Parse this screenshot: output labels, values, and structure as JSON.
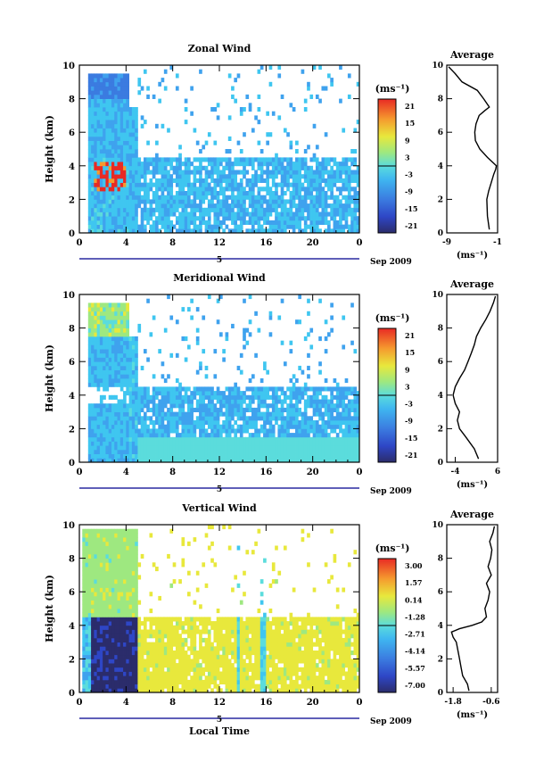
{
  "chart_data": [
    {
      "type": "heatmap",
      "title": "Zonal Wind",
      "xlabel": "",
      "ylabel": "Height (km)",
      "xlim": [
        0,
        24
      ],
      "ylim": [
        0,
        10
      ],
      "xticks": [
        "0",
        "4",
        "8",
        "12",
        "16",
        "20",
        "0"
      ],
      "yticks": [
        "0",
        "2",
        "4",
        "6",
        "8",
        "10"
      ],
      "date_label": "5",
      "month_label": "Sep 2009",
      "colorbar": {
        "unit": "(ms⁻¹)",
        "ticks": [
          "21",
          "15",
          "9",
          "3",
          "-3",
          "-9",
          "-15",
          "-21"
        ],
        "range": [
          -24,
          24
        ]
      },
      "average": {
        "title": "Average",
        "xlabel": "(ms⁻¹)",
        "xticks": [
          "-9",
          "-1"
        ],
        "xlim": [
          -9,
          -1
        ],
        "yticks": [
          "0",
          "2",
          "4",
          "6",
          "8",
          "10"
        ],
        "height": [
          0.2,
          1.0,
          2.0,
          2.5,
          3.0,
          3.5,
          3.8,
          4.0,
          4.5,
          5.0,
          5.5,
          6.0,
          6.5,
          7.0,
          7.3,
          7.5,
          8.0,
          8.5,
          9.0,
          9.5,
          9.9
        ],
        "value": [
          -2.3,
          -2.6,
          -2.7,
          -2.4,
          -2.0,
          -1.6,
          -1.3,
          -1.2,
          -2.6,
          -3.8,
          -4.5,
          -4.6,
          -4.4,
          -3.9,
          -3.0,
          -2.3,
          -3.2,
          -4.2,
          -6.6,
          -7.7,
          -8.7
        ]
      }
    },
    {
      "type": "heatmap",
      "title": "Meridional Wind",
      "xlabel": "",
      "ylabel": "Height (km)",
      "xlim": [
        0,
        24
      ],
      "ylim": [
        0,
        10
      ],
      "xticks": [
        "0",
        "4",
        "8",
        "12",
        "16",
        "20",
        "0"
      ],
      "yticks": [
        "0",
        "2",
        "4",
        "6",
        "8",
        "10"
      ],
      "date_label": "5",
      "month_label": "Sep 2009",
      "colorbar": {
        "unit": "(ms⁻¹)",
        "ticks": [
          "21",
          "15",
          "9",
          "3",
          "-3",
          "-9",
          "-15",
          "-21"
        ],
        "range": [
          -24,
          24
        ]
      },
      "average": {
        "title": "Average",
        "xlabel": "(ms⁻¹)",
        "xticks": [
          "-4",
          "6"
        ],
        "xlim": [
          -6,
          6
        ],
        "yticks": [
          "0",
          "2",
          "4",
          "6",
          "8",
          "10"
        ],
        "height": [
          0.2,
          0.8,
          1.5,
          2.0,
          2.5,
          3.0,
          3.5,
          4.0,
          4.5,
          5.0,
          5.5,
          6.0,
          6.5,
          7.0,
          7.5,
          8.0,
          8.5,
          9.0,
          9.5,
          9.9
        ],
        "value": [
          1.5,
          0.5,
          -1.5,
          -3.0,
          -3.5,
          -3.0,
          -4.0,
          -4.5,
          -4.0,
          -3.0,
          -1.8,
          -1.0,
          -0.2,
          0.5,
          1.0,
          2.0,
          3.2,
          4.2,
          5.0,
          5.5
        ]
      }
    },
    {
      "type": "heatmap",
      "title": "Vertical Wind",
      "xlabel": "Local Time",
      "ylabel": "Height (km)",
      "xlim": [
        0,
        24
      ],
      "ylim": [
        0,
        10
      ],
      "xticks": [
        "0",
        "4",
        "8",
        "12",
        "16",
        "20",
        "0"
      ],
      "yticks": [
        "0",
        "2",
        "4",
        "6",
        "8",
        "10"
      ],
      "date_label": "5",
      "month_label": "Sep 2009",
      "colorbar": {
        "unit": "(ms⁻¹)",
        "ticks": [
          "3.00",
          "1.57",
          "0.14",
          "-1.28",
          "-2.71",
          "-4.14",
          "-5.57",
          "-7.00"
        ],
        "range": [
          -7.7,
          3.7
        ]
      },
      "average": {
        "title": "Average",
        "xlabel": "(ms⁻¹)",
        "xticks": [
          "-1.8",
          "-0.6"
        ],
        "xlim": [
          -2.0,
          -0.4
        ],
        "yticks": [
          "0",
          "2",
          "4",
          "6",
          "8",
          "10"
        ],
        "height": [
          0.1,
          0.5,
          1.0,
          1.5,
          2.0,
          2.5,
          3.0,
          3.3,
          3.6,
          3.8,
          4.0,
          4.2,
          4.5,
          5.0,
          5.5,
          6.0,
          6.5,
          7.0,
          7.5,
          8.0,
          8.5,
          9.0,
          9.5,
          9.9
        ],
        "value": [
          -1.3,
          -1.35,
          -1.5,
          -1.55,
          -1.6,
          -1.65,
          -1.7,
          -1.8,
          -1.85,
          -1.6,
          -1.2,
          -0.9,
          -0.75,
          -0.8,
          -0.7,
          -0.65,
          -0.75,
          -0.6,
          -0.7,
          -0.62,
          -0.58,
          -0.65,
          -0.55,
          -0.5
        ]
      }
    }
  ]
}
